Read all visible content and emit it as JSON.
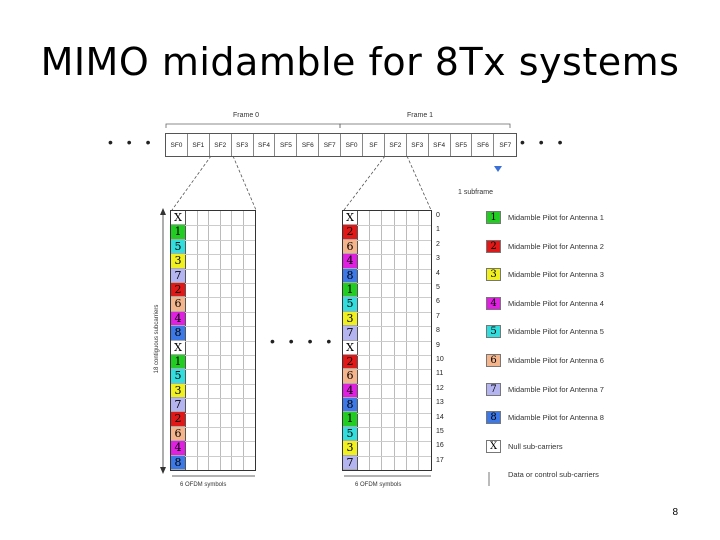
{
  "title": "MIMO midamble for 8Tx systems",
  "frame_labels": [
    "Frame 0",
    "Frame 1"
  ],
  "subframes": [
    "SF0",
    "SF1",
    "SF2",
    "SF3",
    "SF4",
    "SF5",
    "SF6",
    "SF7",
    "SF0",
    "SF",
    "SF2",
    "SF3",
    "SF4",
    "SF5",
    "SF6",
    "SF7"
  ],
  "ellipsis": "• • •",
  "subframe_label": "1 subframe",
  "yaxis_label": "18 contiguous subcarriers",
  "xaxis_label": "6 OFDM symbols",
  "grid_ellipsis": "• • • •",
  "colors": {
    "1": "#22cc22",
    "2": "#e01818",
    "3": "#f0f020",
    "4": "#e020e0",
    "5": "#33dddd",
    "6": "#f4b48c",
    "7": "#b4b4f0",
    "8": "#3c78e6",
    "X": "#ffffff"
  },
  "grid_left_pilots": [
    "X",
    "1",
    "5",
    "3",
    "7",
    "2",
    "6",
    "4",
    "8",
    "X",
    "1",
    "5",
    "3",
    "7",
    "2",
    "6",
    "4",
    "8"
  ],
  "grid_right_pilots": [
    "X",
    "2",
    "6",
    "4",
    "8",
    "1",
    "5",
    "3",
    "7",
    "X",
    "2",
    "6",
    "4",
    "8",
    "1",
    "5",
    "3",
    "7"
  ],
  "indices": [
    "0",
    "1",
    "2",
    "3",
    "4",
    "5",
    "6",
    "7",
    "8",
    "9",
    "10",
    "11",
    "12",
    "13",
    "14",
    "15",
    "16",
    "17"
  ],
  "legend": [
    {
      "symbol": "1",
      "text": "Midamble Pilot for Antenna 1"
    },
    {
      "symbol": "2",
      "text": "Midamble Pilot for Antenna 2"
    },
    {
      "symbol": "3",
      "text": "Midamble Pilot for Antenna 3"
    },
    {
      "symbol": "4",
      "text": "Midamble Pilot for Antenna 4"
    },
    {
      "symbol": "5",
      "text": "Midamble Pilot for Antenna 5"
    },
    {
      "symbol": "6",
      "text": "Midamble Pilot for Antenna 6"
    },
    {
      "symbol": "7",
      "text": "Midamble Pilot for Antenna 7"
    },
    {
      "symbol": "8",
      "text": "Midamble Pilot for Antenna 8"
    },
    {
      "symbol": "X",
      "text": "Null sub-carriers"
    },
    {
      "symbol": "",
      "text": "Data or control sub-carriers"
    }
  ],
  "page_number": "8"
}
